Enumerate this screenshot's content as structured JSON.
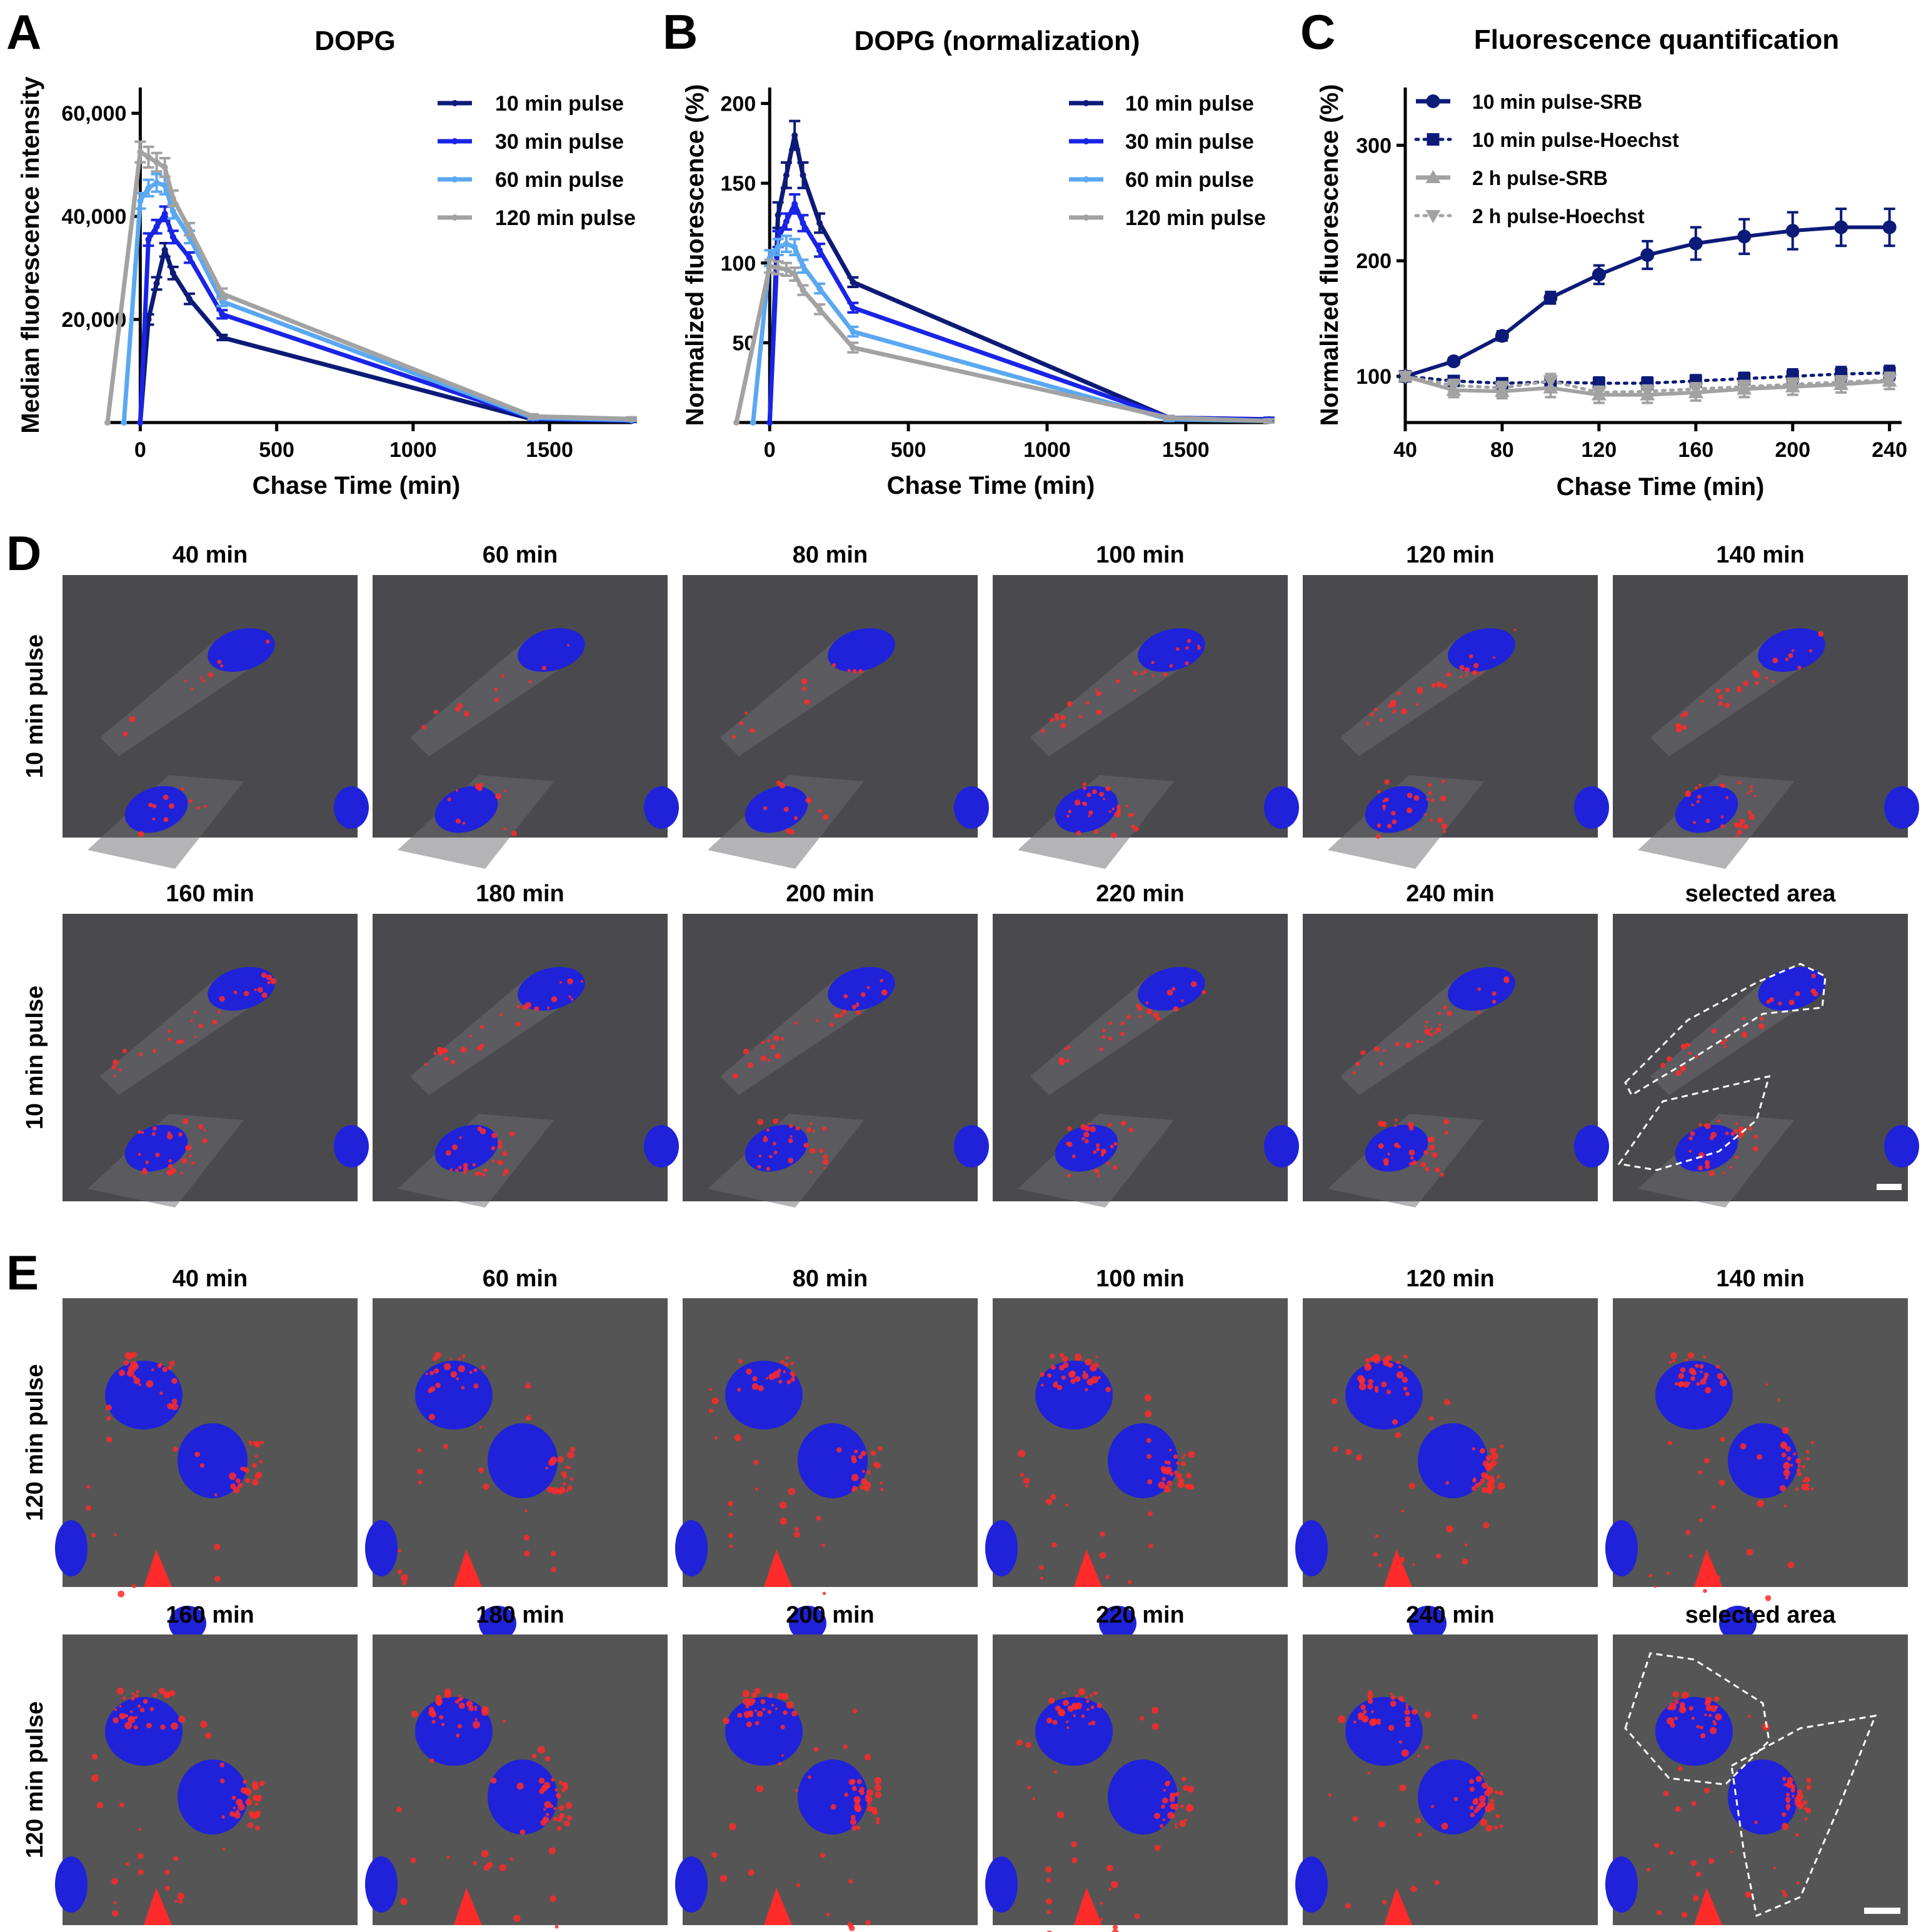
{
  "colors": {
    "navy": "#0c1a78",
    "blue": "#1a24e6",
    "light_blue": "#5aa8f2",
    "gray": "#a2a2a2",
    "cell_bg_d": "#4a4a4e",
    "cell_bg_e": "#555555",
    "nucleus": "#1f22d8",
    "red_dot": "#ff2a2a",
    "outline": "#ffffff"
  },
  "panel_letters": [
    "A",
    "B",
    "C",
    "D",
    "E"
  ],
  "chart_data": [
    {
      "id": "A",
      "type": "line",
      "title": "DOPG",
      "xlabel": "Chase Time (min)",
      "ylabel": "Median fluorescence intensity",
      "xlim": [
        -120,
        1800
      ],
      "ylim": [
        0,
        65000
      ],
      "xticks": [
        0,
        500,
        1000,
        1500
      ],
      "yticks": [
        20000,
        40000,
        60000
      ],
      "xtick_labels": [
        "0",
        "500",
        "1000",
        "1500"
      ],
      "ytick_labels": [
        "20,000",
        "40,000",
        "60,000"
      ],
      "legend": "top-right",
      "series": [
        {
          "name": "10 min pulse",
          "color": "#0c1a78",
          "x": [
            0,
            30,
            60,
            90,
            120,
            180,
            300,
            1440,
            1800
          ],
          "y": [
            0,
            20000,
            27000,
            33500,
            29000,
            24000,
            16500,
            600,
            300
          ],
          "err": [
            0,
            1000,
            1200,
            1300,
            1200,
            1000,
            500,
            300,
            200
          ]
        },
        {
          "name": "30 min pulse",
          "color": "#1a24e6",
          "x": [
            0,
            30,
            60,
            90,
            120,
            180,
            300,
            1440,
            1800
          ],
          "y": [
            0,
            35500,
            38000,
            40500,
            36000,
            32000,
            21000,
            800,
            400
          ],
          "err": [
            0,
            1200,
            1300,
            1400,
            1200,
            1000,
            800,
            300,
            200
          ]
        },
        {
          "name": "60 min pulse",
          "color": "#5aa8f2",
          "x": [
            -60,
            0,
            30,
            60,
            90,
            120,
            180,
            300,
            1440,
            1800
          ],
          "y": [
            0,
            43000,
            45500,
            46500,
            46000,
            41000,
            36000,
            23500,
            900,
            500
          ],
          "err": [
            0,
            1500,
            1600,
            1700,
            1700,
            1400,
            1200,
            900,
            300,
            200
          ]
        },
        {
          "name": "120 min pulse",
          "color": "#a2a2a2",
          "x": [
            -120,
            0,
            30,
            60,
            90,
            120,
            180,
            300,
            1440,
            1800
          ],
          "y": [
            0,
            52500,
            51500,
            50500,
            49500,
            43500,
            37500,
            25000,
            1200,
            700
          ],
          "err": [
            0,
            2000,
            2000,
            1800,
            1800,
            1500,
            1200,
            1000,
            400,
            300
          ]
        }
      ]
    },
    {
      "id": "B",
      "type": "line",
      "title": "DOPG (normalization)",
      "xlabel": "Chase Time (min)",
      "ylabel": "Normalized fluorescence (%)",
      "xlim": [
        -120,
        1800
      ],
      "ylim": [
        0,
        210
      ],
      "xticks": [
        0,
        500,
        1000,
        1500
      ],
      "yticks": [
        50,
        100,
        150,
        200
      ],
      "xtick_labels": [
        "0",
        "500",
        "1000",
        "1500"
      ],
      "ytick_labels": [
        "50",
        "100",
        "150",
        "200"
      ],
      "legend": "top-right",
      "series": [
        {
          "name": "10 min pulse",
          "color": "#0c1a78",
          "x": [
            0,
            30,
            60,
            90,
            120,
            180,
            300,
            1440,
            1800
          ],
          "y": [
            0,
            130,
            155,
            180,
            155,
            125,
            88,
            3,
            2
          ],
          "err": [
            0,
            8,
            8,
            9,
            8,
            6,
            3,
            1,
            1
          ]
        },
        {
          "name": "30 min pulse",
          "color": "#1a24e6",
          "x": [
            0,
            30,
            60,
            90,
            120,
            180,
            300,
            1440,
            1800
          ],
          "y": [
            0,
            115,
            126,
            137,
            125,
            108,
            72,
            3,
            2
          ],
          "err": [
            0,
            5,
            5,
            6,
            5,
            4,
            3,
            1,
            1
          ]
        },
        {
          "name": "60 min pulse",
          "color": "#5aa8f2",
          "x": [
            -60,
            0,
            30,
            60,
            90,
            120,
            180,
            300,
            1440,
            1800
          ],
          "y": [
            0,
            103,
            110,
            112,
            110,
            98,
            84,
            57,
            2,
            1
          ],
          "err": [
            0,
            5,
            5,
            5,
            5,
            4,
            3,
            3,
            1,
            1
          ]
        },
        {
          "name": "120 min pulse",
          "color": "#a2a2a2",
          "x": [
            -120,
            0,
            30,
            60,
            90,
            120,
            180,
            300,
            1440,
            1800
          ],
          "y": [
            0,
            98,
            97,
            96,
            93,
            83,
            71,
            47,
            3,
            1
          ],
          "err": [
            0,
            4,
            4,
            4,
            4,
            3,
            3,
            3,
            1,
            1
          ]
        }
      ]
    },
    {
      "id": "C",
      "type": "line",
      "title": "Fluorescence quantification",
      "xlabel": "Chase Time (min)",
      "ylabel": "Normalized fluorescence (%)",
      "xlim": [
        40,
        245
      ],
      "ylim": [
        60,
        350
      ],
      "xticks": [
        40,
        80,
        120,
        160,
        200,
        240
      ],
      "yticks": [
        100,
        200,
        300
      ],
      "xtick_labels": [
        "40",
        "80",
        "120",
        "160",
        "200",
        "240"
      ],
      "ytick_labels": [
        "100",
        "200",
        "300"
      ],
      "legend": "top-left",
      "series": [
        {
          "name": "10 min pulse-SRB",
          "color": "#0c1a78",
          "style": "solid",
          "marker": "circle",
          "x": [
            40,
            60,
            80,
            100,
            120,
            140,
            160,
            180,
            200,
            220,
            240
          ],
          "y": [
            100,
            113,
            135,
            168,
            188,
            205,
            215,
            221,
            226,
            229,
            229
          ],
          "err": [
            0,
            3,
            4,
            5,
            8,
            12,
            14,
            15,
            16,
            16,
            16
          ]
        },
        {
          "name": "10 min pulse-Hoechst",
          "color": "#0c1a78",
          "style": "dotted",
          "marker": "square",
          "x": [
            40,
            60,
            80,
            100,
            120,
            140,
            160,
            180,
            200,
            220,
            240
          ],
          "y": [
            100,
            96,
            94,
            95,
            94,
            94,
            96,
            98,
            100,
            102,
            103
          ],
          "err": [
            0,
            3,
            4,
            4,
            5,
            5,
            5,
            5,
            6,
            6,
            6
          ]
        },
        {
          "name": "2 h pulse-SRB",
          "color": "#a2a2a2",
          "style": "solid",
          "marker": "triangle",
          "x": [
            40,
            60,
            80,
            100,
            120,
            140,
            160,
            180,
            200,
            220,
            240
          ],
          "y": [
            100,
            88,
            87,
            90,
            84,
            84,
            86,
            89,
            91,
            93,
            96
          ],
          "err": [
            0,
            6,
            6,
            8,
            7,
            7,
            7,
            7,
            7,
            7,
            7
          ]
        },
        {
          "name": "2 h pulse-Hoechst",
          "color": "#a2a2a2",
          "style": "dotted",
          "marker": "triangle-down",
          "x": [
            40,
            60,
            80,
            100,
            120,
            140,
            160,
            180,
            200,
            220,
            240
          ],
          "y": [
            100,
            92,
            90,
            96,
            86,
            87,
            89,
            91,
            93,
            95,
            97
          ],
          "err": [
            0,
            5,
            5,
            6,
            5,
            5,
            5,
            5,
            5,
            5,
            5
          ]
        }
      ]
    }
  ],
  "image_panels": {
    "D": {
      "row_labels": [
        "10 min pulse",
        "10 min pulse"
      ],
      "row1_labels": [
        "40 min",
        "60 min",
        "80 min",
        "100 min",
        "120 min",
        "140 min"
      ],
      "row2_labels": [
        "160 min",
        "180 min",
        "200 min",
        "220 min",
        "240 min",
        "selected area"
      ]
    },
    "E": {
      "row_labels": [
        "120 min pulse",
        "120 min pulse"
      ],
      "row1_labels": [
        "40 min",
        "60 min",
        "80 min",
        "100 min",
        "120 min",
        "140 min"
      ],
      "row2_labels": [
        "160 min",
        "180 min",
        "200 min",
        "220 min",
        "240 min",
        "selected area"
      ]
    }
  }
}
